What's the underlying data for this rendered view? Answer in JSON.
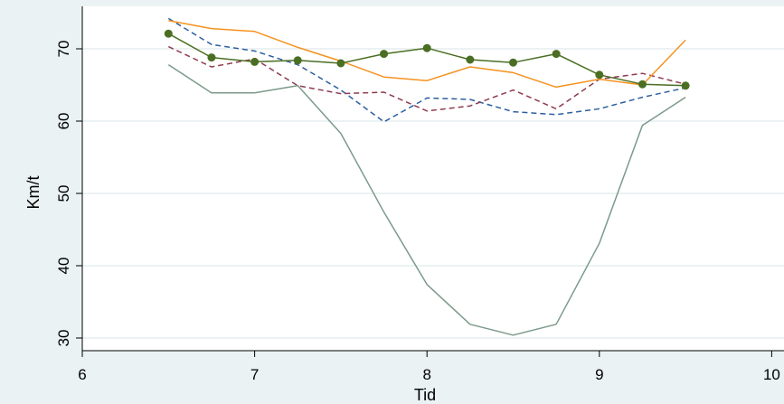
{
  "chart_data": {
    "type": "line",
    "title": "",
    "xlabel": "Tid",
    "ylabel": "Km/t",
    "xlim": [
      6,
      10
    ],
    "ylim": [
      29,
      76
    ],
    "xticks": [
      6,
      7,
      8,
      9,
      10
    ],
    "yticks": [
      30,
      40,
      50,
      60,
      70
    ],
    "grid": "horizontal",
    "x": [
      6.5,
      6.75,
      7.0,
      7.25,
      7.5,
      7.75,
      8.0,
      8.25,
      8.5,
      8.75,
      9.0,
      9.25,
      9.5
    ],
    "series": [
      {
        "color": "#2d5f9e",
        "dash": "dash",
        "markers": false,
        "values": [
          74.2,
          70.6,
          69.7,
          67.8,
          64.3,
          59.9,
          63.2,
          63.0,
          61.3,
          60.9,
          61.7,
          63.3,
          64.6
        ]
      },
      {
        "color": "#8e3b4f",
        "dash": "dash",
        "markers": false,
        "values": [
          70.3,
          67.5,
          68.6,
          64.9,
          63.8,
          64.0,
          61.4,
          62.1,
          64.3,
          61.7,
          65.8,
          66.6,
          65.1
        ]
      },
      {
        "color": "#f5921e",
        "dash": "solid",
        "markers": false,
        "values": [
          73.9,
          72.8,
          72.4,
          70.2,
          68.3,
          66.1,
          65.6,
          67.5,
          66.7,
          64.7,
          65.8,
          65.0,
          71.2
        ]
      },
      {
        "color": "#7b9a8a",
        "dash": "solid",
        "markers": false,
        "values": [
          67.8,
          63.9,
          63.9,
          64.9,
          58.3,
          47.4,
          37.4,
          31.9,
          30.4,
          31.9,
          43.1,
          59.4,
          63.3
        ]
      },
      {
        "color": "#4a6e22",
        "dash": "solid",
        "markers": true,
        "values": [
          72.1,
          68.8,
          68.2,
          68.4,
          68.0,
          69.3,
          70.1,
          68.5,
          68.1,
          69.3,
          66.4,
          65.1,
          64.9
        ]
      }
    ]
  }
}
